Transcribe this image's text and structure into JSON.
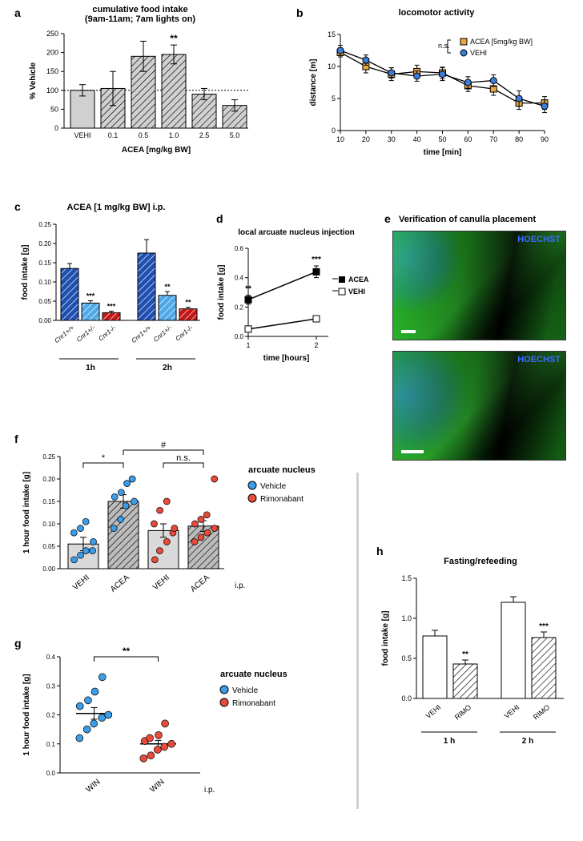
{
  "panel_a": {
    "label": "a",
    "title_line1": "cumulative food intake",
    "title_line2": "(9am-11am; 7am lights on)",
    "ylabel": "% Vehicle",
    "xlabel": "ACEA [mg/kg BW]",
    "yticks": [
      0,
      50,
      100,
      150,
      200,
      250
    ],
    "categories": [
      "VEHI",
      "0.1",
      "0.5",
      "1.0",
      "2.5",
      "5.0"
    ],
    "values": [
      100,
      105,
      190,
      195,
      90,
      60
    ],
    "err": [
      15,
      45,
      40,
      25,
      15,
      15
    ],
    "baseline": 100,
    "annot": {
      "idx": 3,
      "text": "**"
    },
    "bar_fill": "#d0d0d0",
    "bar_stroke": "#000",
    "first_plain": true
  },
  "panel_b": {
    "label": "b",
    "title": "locomotor activity",
    "ylabel": "distance [m]",
    "xlabel": "time [min]",
    "yticks": [
      0,
      5,
      10,
      15
    ],
    "xticks": [
      10,
      20,
      30,
      40,
      50,
      60,
      70,
      80,
      90
    ],
    "series": [
      {
        "name": "ACEA [5mg/kg BW]",
        "color": "#e8a740",
        "marker": "square",
        "values": [
          12.2,
          10.0,
          8.8,
          9.2,
          9.0,
          7.0,
          6.5,
          4.3,
          4.3
        ],
        "err": [
          0.7,
          1.0,
          1.0,
          1.0,
          0.9,
          0.9,
          1.0,
          1.0,
          1.0
        ]
      },
      {
        "name": "VEHI",
        "color": "#3b7dd8",
        "marker": "circle",
        "values": [
          12.5,
          11.0,
          9.0,
          8.5,
          8.8,
          7.5,
          7.8,
          5.0,
          3.8
        ],
        "err": [
          0.8,
          0.8,
          0.8,
          0.8,
          1.0,
          0.9,
          0.9,
          1.2,
          1.0
        ]
      }
    ],
    "ns_label": "n.s."
  },
  "panel_c": {
    "label": "c",
    "title": "ACEA [1 mg/kg BW] i.p.",
    "ylabel": "food intake [g]",
    "yticks": [
      0.0,
      0.05,
      0.1,
      0.15,
      0.2,
      0.25
    ],
    "groups": [
      "1h",
      "2h"
    ],
    "cats": [
      "Cnr1+/+",
      "Cnr1+/-",
      "Cnr1-/-"
    ],
    "colors": [
      "#1f4fb0",
      "#4fa8e8",
      "#c41818"
    ],
    "values_1h": [
      0.135,
      0.045,
      0.02
    ],
    "err_1h": [
      0.013,
      0.006,
      0.004
    ],
    "sig_1h": [
      "",
      "***",
      "***"
    ],
    "values_2h": [
      0.175,
      0.065,
      0.03
    ],
    "err_2h": [
      0.035,
      0.01,
      0.004
    ],
    "sig_2h": [
      "",
      "**",
      "**"
    ]
  },
  "panel_d": {
    "label": "d",
    "title": "local arcuate nucleus injection",
    "ylabel": "food intake [g]",
    "xlabel": "time [hours]",
    "yticks": [
      0.0,
      0.2,
      0.4,
      0.6
    ],
    "xticks": [
      1,
      2
    ],
    "series": [
      {
        "name": "ACEA",
        "marker": "filled-square",
        "values": [
          0.25,
          0.44
        ],
        "err": [
          0.03,
          0.04
        ]
      },
      {
        "name": "VEHI",
        "marker": "open-square",
        "values": [
          0.05,
          0.12
        ],
        "err": [
          0.02,
          0.02
        ]
      }
    ],
    "sig": [
      "**",
      "***"
    ]
  },
  "panel_e": {
    "label": "e",
    "title": "Verification of canulla placement",
    "hoechst": "HOECHST"
  },
  "panel_f": {
    "label": "f",
    "ylabel": "1 hour food intake [g]",
    "yticks": [
      0.0,
      0.05,
      0.1,
      0.15,
      0.2,
      0.25
    ],
    "cats": [
      "VEHI",
      "ACEA",
      "VEHI",
      "ACEA"
    ],
    "ip_label": "i.p.",
    "legend_title": "arcuate nucleus",
    "legend": [
      {
        "name": "Vehicle",
        "color": "#3b9de8"
      },
      {
        "name": "Rimonabant",
        "color": "#e84b3b"
      }
    ],
    "bar_vals": [
      0.055,
      0.15,
      0.085,
      0.095
    ],
    "bar_err": [
      0.015,
      0.015,
      0.015,
      0.012
    ],
    "points": {
      "0": {
        "color": "#3b9de8",
        "y": [
          0.02,
          0.03,
          0.04,
          0.06,
          0.08,
          0.09,
          0.105,
          0.04
        ]
      },
      "1": {
        "color": "#3b9de8",
        "y": [
          0.09,
          0.11,
          0.14,
          0.15,
          0.16,
          0.17,
          0.19,
          0.2
        ]
      },
      "2": {
        "color": "#e84b3b",
        "y": [
          0.02,
          0.04,
          0.06,
          0.08,
          0.1,
          0.13,
          0.15,
          0.09
        ]
      },
      "3": {
        "color": "#e84b3b",
        "y": [
          0.06,
          0.07,
          0.08,
          0.09,
          0.1,
          0.11,
          0.12,
          0.2
        ]
      }
    },
    "sig": [
      {
        "from": 0,
        "to": 1,
        "text": "*"
      },
      {
        "from": 2,
        "to": 3,
        "text": "n.s."
      },
      {
        "from": 1,
        "to": 3,
        "text": "#",
        "high": true
      }
    ]
  },
  "panel_g": {
    "label": "g",
    "ylabel": "1 hour food intake [g]",
    "yticks": [
      0.0,
      0.1,
      0.2,
      0.3,
      0.4
    ],
    "cats": [
      "WIN",
      "WIN"
    ],
    "ip_label": "i.p.",
    "legend_title": "arcuate nucleus",
    "legend": [
      {
        "name": "Vehicle",
        "color": "#3b9de8"
      },
      {
        "name": "Rimonabant",
        "color": "#e84b3b"
      }
    ],
    "means": [
      0.205,
      0.1
    ],
    "err": [
      0.02,
      0.012
    ],
    "points": {
      "0": {
        "color": "#3b9de8",
        "y": [
          0.12,
          0.15,
          0.17,
          0.19,
          0.2,
          0.23,
          0.25,
          0.28,
          0.33
        ]
      },
      "1": {
        "color": "#e84b3b",
        "y": [
          0.05,
          0.06,
          0.08,
          0.09,
          0.1,
          0.11,
          0.12,
          0.13,
          0.17
        ]
      }
    },
    "sig_text": "**"
  },
  "panel_h": {
    "label": "h",
    "title": "Fasting/refeeding",
    "ylabel": "food intake [g]",
    "yticks": [
      0.0,
      0.5,
      1.0,
      1.5
    ],
    "groups": [
      "1 h",
      "2 h"
    ],
    "cats": [
      "VEHI",
      "RIMO"
    ],
    "vals_1h": [
      0.78,
      0.43
    ],
    "err_1h": [
      0.07,
      0.05
    ],
    "sig_1h": [
      "",
      "**"
    ],
    "vals_2h": [
      1.2,
      0.76
    ],
    "err_2h": [
      0.07,
      0.07
    ],
    "sig_2h": [
      "",
      "***"
    ]
  }
}
